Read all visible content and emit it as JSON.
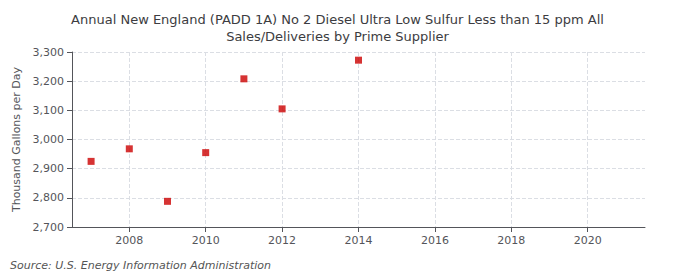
{
  "chart_data": {
    "type": "scatter",
    "title": "Annual New England (PADD 1A) No 2 Diesel Ultra Low Sulfur Less than 15 ppm All\nSales/Deliveries by Prime Supplier",
    "ylabel": "Thousand Gallons per Day",
    "annotations": [
      "Source: U.S. Energy Information Administration"
    ],
    "x": [
      2007,
      2008,
      2009,
      2010,
      2011,
      2012,
      2014
    ],
    "values": [
      2925,
      2968,
      2788,
      2955,
      3208,
      3105,
      3272
    ],
    "color": "#cc0000",
    "marker": "square",
    "xlim": [
      2006.5,
      2021.5
    ],
    "xticks": [
      2008,
      2010,
      2012,
      2014,
      2016,
      2018,
      2020
    ],
    "ylim": [
      2700,
      3300
    ],
    "yticks": [
      {
        "value": 2700,
        "label": "2,700"
      },
      {
        "value": 2800,
        "label": "2,800"
      },
      {
        "value": 2900,
        "label": "2,900"
      },
      {
        "value": 3000,
        "label": "3,000"
      },
      {
        "value": 3100,
        "label": "3,100"
      },
      {
        "value": 3200,
        "label": "3,200"
      },
      {
        "value": 3300,
        "label": "3,300"
      }
    ],
    "grid": true
  }
}
